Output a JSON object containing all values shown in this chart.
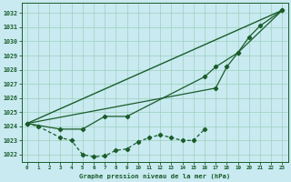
{
  "bg_color": "#c8eaf0",
  "grid_color": "#9ecfbb",
  "line_color": "#1a5c2a",
  "title": "Graphe pression niveau de la mer (hPa)",
  "hours": [
    0,
    1,
    2,
    3,
    4,
    5,
    6,
    7,
    8,
    9,
    10,
    11,
    12,
    13,
    14,
    15,
    16,
    17,
    18,
    19,
    20,
    21,
    22,
    23
  ],
  "ylim": [
    1021.5,
    1032.7
  ],
  "yticks": [
    1022,
    1023,
    1024,
    1025,
    1026,
    1027,
    1028,
    1029,
    1030,
    1031,
    1032
  ],
  "xlim": [
    -0.5,
    23.5
  ],
  "series_straight": [
    [
      0,
      1024.2
    ],
    [
      23,
      1032.2
    ]
  ],
  "series_upper": [
    [
      0,
      1024.2
    ],
    [
      17,
      1026.7
    ],
    [
      18,
      1028.2
    ],
    [
      19,
      1029.2
    ],
    [
      20,
      1030.3
    ],
    [
      21,
      1031.1
    ],
    [
      23,
      1032.2
    ]
  ],
  "series_mid": [
    [
      0,
      1024.2
    ],
    [
      3,
      1023.8
    ],
    [
      5,
      1023.8
    ],
    [
      7,
      1024.7
    ],
    [
      9,
      1024.7
    ],
    [
      16,
      1027.5
    ],
    [
      17,
      1028.2
    ],
    [
      19,
      1029.2
    ],
    [
      23,
      1032.2
    ]
  ],
  "series_lower": [
    [
      0,
      1024.2
    ],
    [
      1,
      1024.0
    ],
    [
      3,
      1023.2
    ],
    [
      4,
      1023.0
    ],
    [
      5,
      1022.0
    ],
    [
      6,
      1021.85
    ],
    [
      7,
      1021.9
    ],
    [
      8,
      1022.3
    ],
    [
      9,
      1022.4
    ],
    [
      10,
      1022.9
    ],
    [
      11,
      1023.2
    ],
    [
      12,
      1023.4
    ],
    [
      13,
      1023.2
    ],
    [
      14,
      1023.0
    ],
    [
      15,
      1023.0
    ],
    [
      16,
      1023.8
    ]
  ],
  "lw_straight": 1.0,
  "lw_lines": 0.9,
  "marker_size": 2.2
}
